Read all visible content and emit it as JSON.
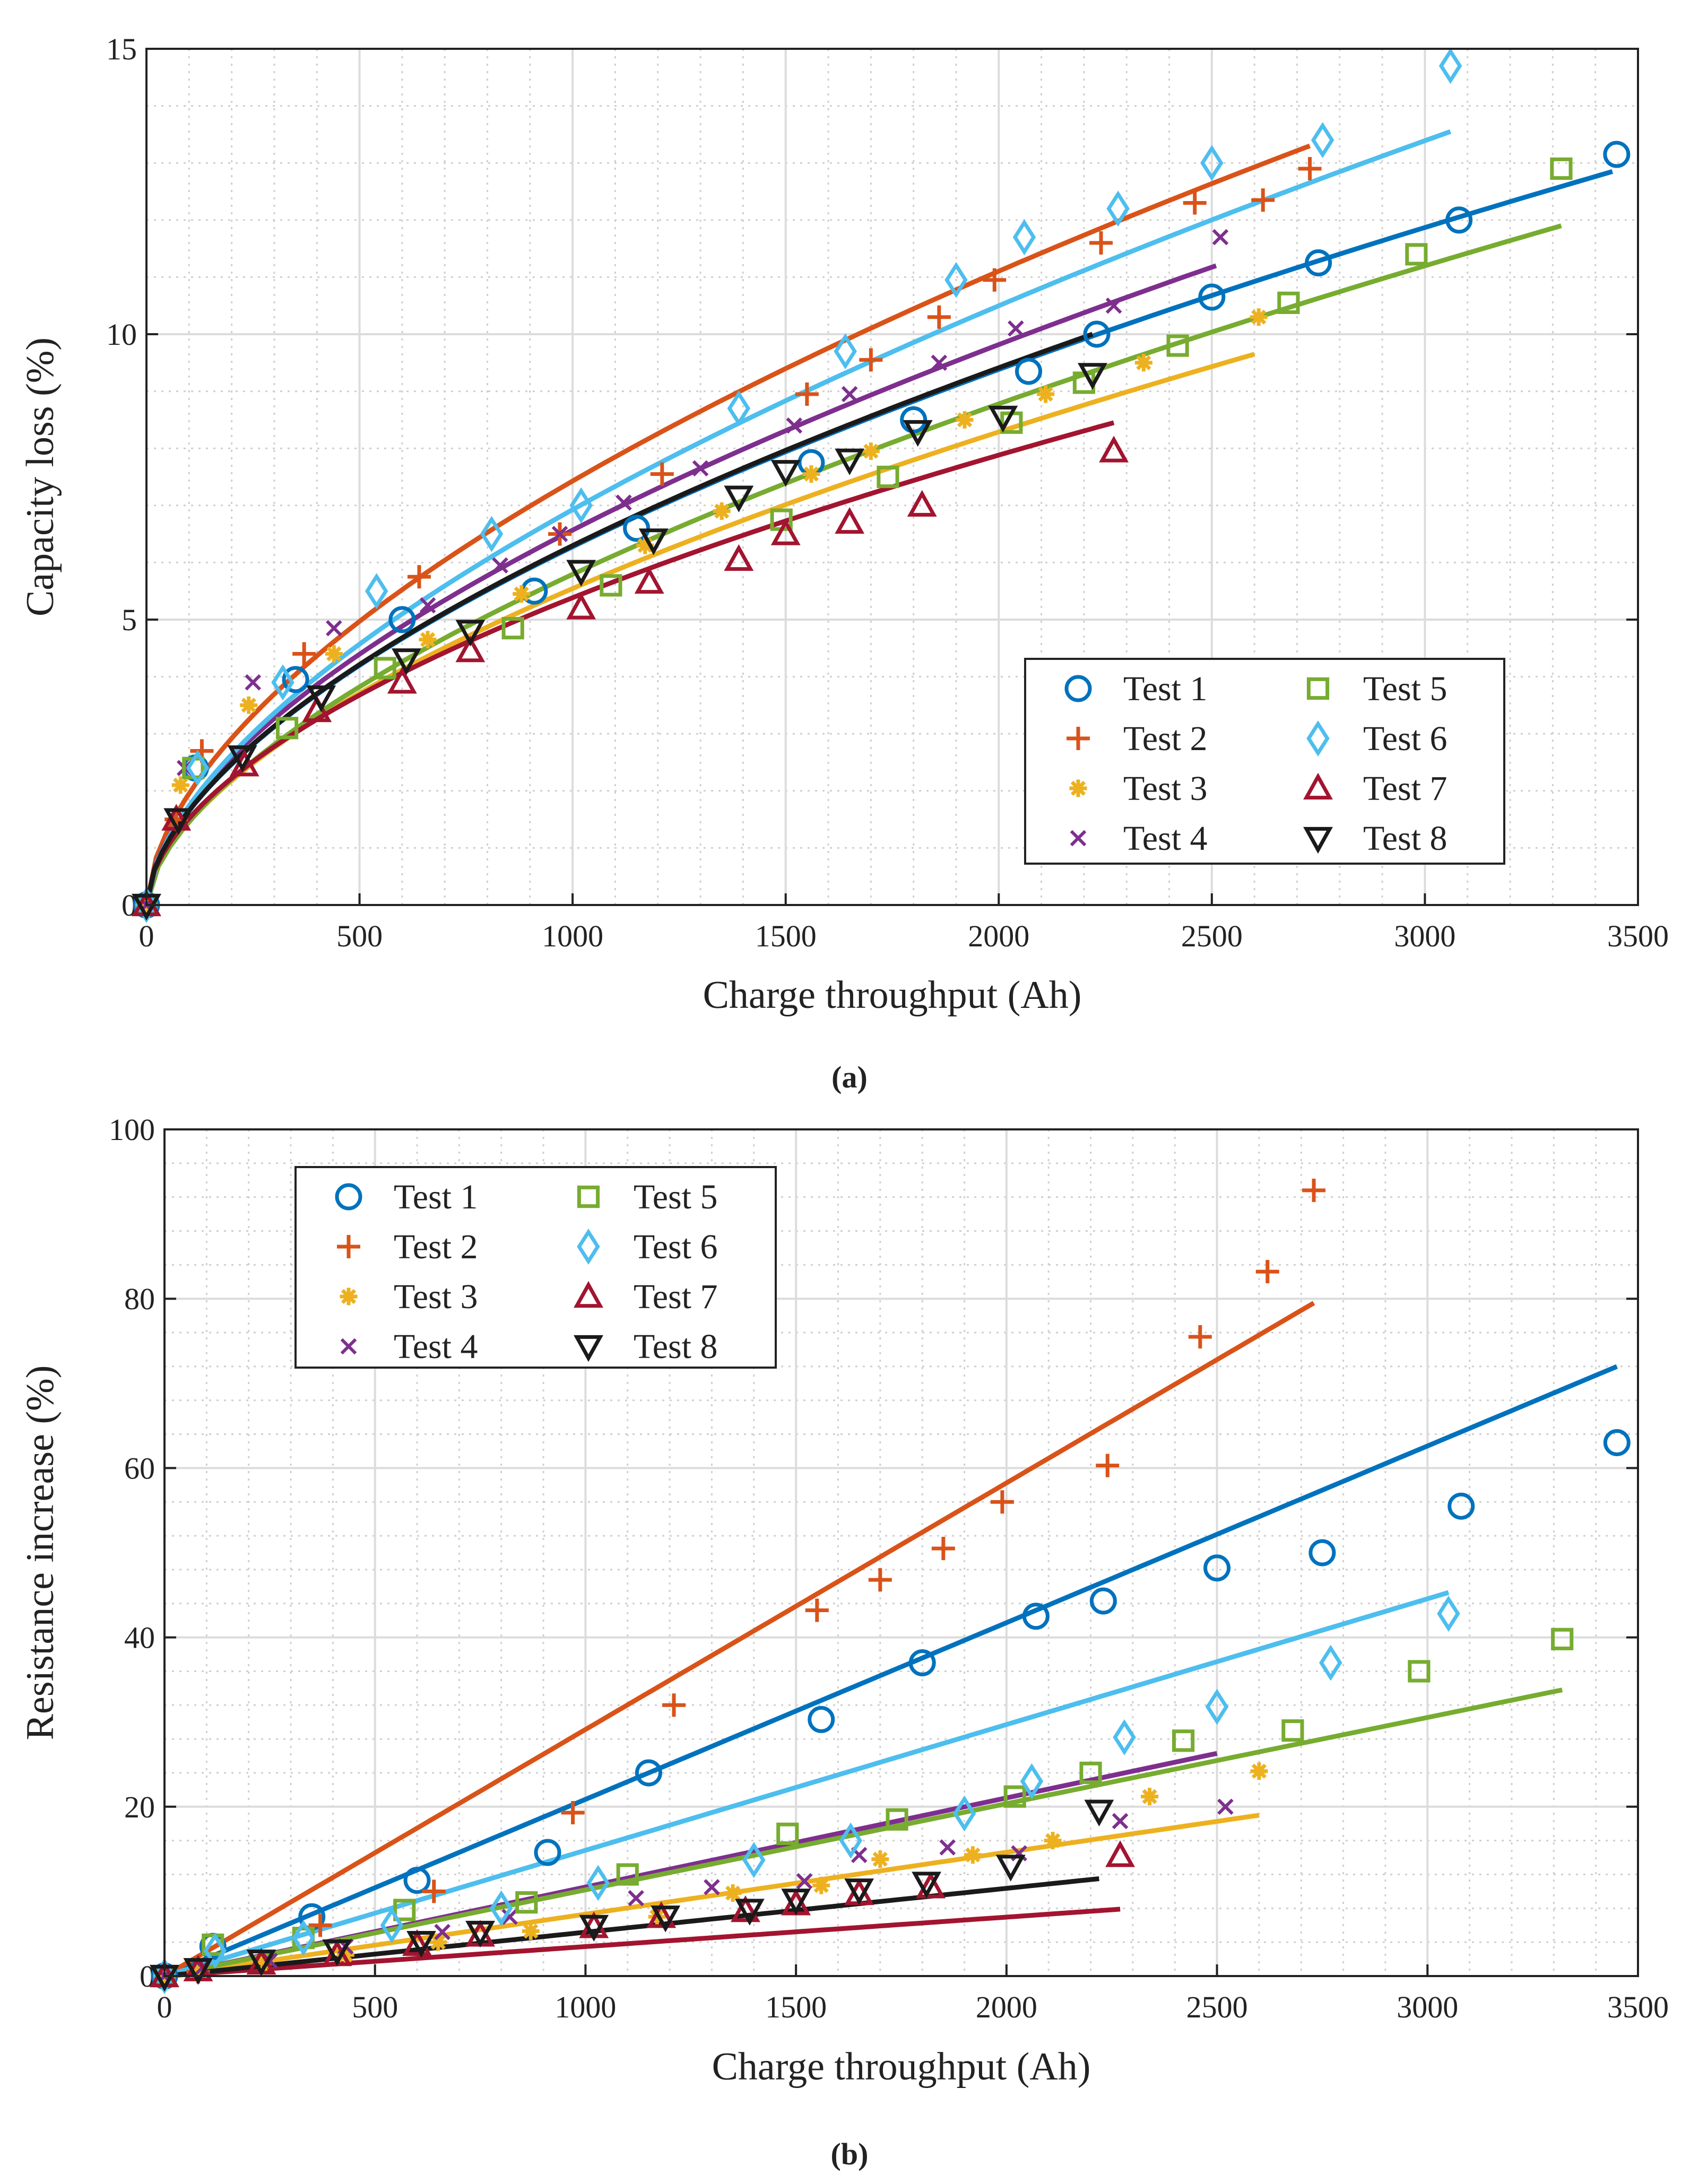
{
  "colors": {
    "Test 1": "#0072BD",
    "Test 2": "#D95319",
    "Test 3": "#EDB120",
    "Test 4": "#7E2F8E",
    "Test 5": "#77AC30",
    "Test 6": "#4DBEEE",
    "Test 7": "#A2142F",
    "Test 8": "#1a1a1a"
  },
  "chart_data": [
    {
      "id": "a",
      "type": "scatter",
      "caption": "(a)",
      "xlabel": "Charge throughput (Ah)",
      "ylabel": "Capacity loss (%)",
      "xlim": [
        0,
        3500
      ],
      "ylim": [
        0,
        15
      ],
      "xticks": [
        0,
        500,
        1000,
        1500,
        2000,
        2500,
        3000,
        3500
      ],
      "yticks": [
        0,
        5,
        10,
        15
      ],
      "x_minor_step": 100,
      "y_minor_step": 1,
      "grid": true,
      "legend_placement": "bottom-right",
      "fit_type": "power law",
      "series": [
        {
          "name": "Test 1",
          "marker": "circle",
          "points": [
            [
              0,
              0
            ],
            [
              115,
              2.4
            ],
            [
              350,
              3.95
            ],
            [
              600,
              5.0
            ],
            [
              910,
              5.5
            ],
            [
              1150,
              6.6
            ],
            [
              1560,
              7.75
            ],
            [
              1800,
              8.5
            ],
            [
              2070,
              9.35
            ],
            [
              2230,
              10.0
            ],
            [
              2500,
              10.65
            ],
            [
              2750,
              11.25
            ],
            [
              3080,
              12.0
            ],
            [
              3450,
              13.15
            ]
          ],
          "fit": {
            "b": 0.58,
            "x_end": 3440,
            "y_end": 12.85
          }
        },
        {
          "name": "Test 2",
          "marker": "plus",
          "points": [
            [
              0,
              0
            ],
            [
              70,
              1.5
            ],
            [
              130,
              2.7
            ],
            [
              370,
              4.4
            ],
            [
              640,
              5.75
            ],
            [
              970,
              6.5
            ],
            [
              1210,
              7.55
            ],
            [
              1550,
              8.95
            ],
            [
              1700,
              9.55
            ],
            [
              1860,
              10.3
            ],
            [
              1990,
              10.95
            ],
            [
              2240,
              11.6
            ],
            [
              2460,
              12.3
            ],
            [
              2620,
              12.35
            ],
            [
              2730,
              12.9
            ]
          ],
          "fit": {
            "b": 0.58,
            "x_end": 2730,
            "y_end": 13.3
          }
        },
        {
          "name": "Test 3",
          "marker": "asterisk",
          "points": [
            [
              0,
              0
            ],
            [
              80,
              2.1
            ],
            [
              240,
              3.5
            ],
            [
              440,
              4.4
            ],
            [
              660,
              4.65
            ],
            [
              880,
              5.45
            ],
            [
              1170,
              6.3
            ],
            [
              1350,
              6.9
            ],
            [
              1560,
              7.55
            ],
            [
              1700,
              7.95
            ],
            [
              1920,
              8.5
            ],
            [
              2110,
              8.95
            ],
            [
              2340,
              9.5
            ],
            [
              2610,
              10.3
            ]
          ],
          "fit": {
            "b": 0.58,
            "x_end": 2600,
            "y_end": 9.65
          }
        },
        {
          "name": "Test 4",
          "marker": "cross",
          "points": [
            [
              0,
              0
            ],
            [
              90,
              2.4
            ],
            [
              250,
              3.9
            ],
            [
              440,
              4.85
            ],
            [
              660,
              5.25
            ],
            [
              830,
              5.95
            ],
            [
              970,
              6.5
            ],
            [
              1120,
              7.05
            ],
            [
              1300,
              7.65
            ],
            [
              1520,
              8.4
            ],
            [
              1650,
              8.95
            ],
            [
              1860,
              9.5
            ],
            [
              2040,
              10.1
            ],
            [
              2270,
              10.5
            ],
            [
              2520,
              11.7
            ]
          ],
          "fit": {
            "b": 0.58,
            "x_end": 2510,
            "y_end": 11.2
          }
        },
        {
          "name": "Test 5",
          "marker": "square",
          "points": [
            [
              0,
              0
            ],
            [
              110,
              2.4
            ],
            [
              330,
              3.1
            ],
            [
              560,
              4.15
            ],
            [
              860,
              4.85
            ],
            [
              1090,
              5.6
            ],
            [
              1490,
              6.75
            ],
            [
              1740,
              7.5
            ],
            [
              2030,
              8.45
            ],
            [
              2200,
              9.15
            ],
            [
              2420,
              9.8
            ],
            [
              2680,
              10.55
            ],
            [
              2980,
              11.4
            ],
            [
              3320,
              12.9
            ]
          ],
          "fit": {
            "b": 0.6,
            "x_end": 3320,
            "y_end": 11.9
          }
        },
        {
          "name": "Test 6",
          "marker": "diamond",
          "points": [
            [
              0,
              0
            ],
            [
              120,
              2.4
            ],
            [
              320,
              3.9
            ],
            [
              540,
              5.5
            ],
            [
              810,
              6.5
            ],
            [
              1020,
              7.0
            ],
            [
              1390,
              8.7
            ],
            [
              1640,
              9.7
            ],
            [
              1900,
              10.95
            ],
            [
              2060,
              11.7
            ],
            [
              2280,
              12.2
            ],
            [
              2500,
              13.0
            ],
            [
              2760,
              13.4
            ],
            [
              3060,
              14.7
            ]
          ],
          "fit": {
            "b": 0.6,
            "x_end": 3060,
            "y_end": 13.55
          }
        },
        {
          "name": "Test 7",
          "marker": "triangle",
          "points": [
            [
              0,
              0
            ],
            [
              70,
              1.5
            ],
            [
              230,
              2.45
            ],
            [
              400,
              3.4
            ],
            [
              600,
              3.9
            ],
            [
              760,
              4.45
            ],
            [
              1020,
              5.2
            ],
            [
              1180,
              5.65
            ],
            [
              1390,
              6.05
            ],
            [
              1500,
              6.5
            ],
            [
              1650,
              6.7
            ],
            [
              1820,
              7.0
            ],
            [
              2270,
              7.95
            ]
          ],
          "fit": {
            "b": 0.55,
            "x_end": 2270,
            "y_end": 8.45
          }
        },
        {
          "name": "Test 8",
          "marker": "triangle-down",
          "points": [
            [
              0,
              0
            ],
            [
              75,
              1.5
            ],
            [
              225,
              2.6
            ],
            [
              410,
              3.65
            ],
            [
              610,
              4.3
            ],
            [
              760,
              4.8
            ],
            [
              1020,
              5.85
            ],
            [
              1190,
              6.4
            ],
            [
              1390,
              7.15
            ],
            [
              1500,
              7.6
            ],
            [
              1650,
              7.8
            ],
            [
              1810,
              8.3
            ],
            [
              2010,
              8.55
            ],
            [
              2220,
              9.3
            ]
          ],
          "fit": {
            "b": 0.58,
            "x_end": 2220,
            "y_end": 10.0
          }
        }
      ]
    },
    {
      "id": "b",
      "type": "scatter",
      "caption": "(b)",
      "xlabel": "Charge throughput (Ah)",
      "ylabel": "Resistance increase (%)",
      "xlim": [
        0,
        3500
      ],
      "ylim": [
        0,
        100
      ],
      "xticks": [
        0,
        500,
        1000,
        1500,
        2000,
        2500,
        3000,
        3500
      ],
      "yticks": [
        0,
        20,
        40,
        60,
        80,
        100
      ],
      "x_minor_step": 100,
      "y_minor_step": 4,
      "grid": true,
      "legend_placement": "top-left",
      "fit_type": "linear",
      "series": [
        {
          "name": "Test 1",
          "marker": "circle",
          "points": [
            [
              0,
              0
            ],
            [
              115,
              3.5
            ],
            [
              350,
              7
            ],
            [
              600,
              11.3
            ],
            [
              910,
              14.6
            ],
            [
              1150,
              24
            ],
            [
              1560,
              30.3
            ],
            [
              1800,
              37
            ],
            [
              2070,
              42.5
            ],
            [
              2230,
              44.3
            ],
            [
              2500,
              48.2
            ],
            [
              2750,
              50
            ],
            [
              3080,
              55.5
            ],
            [
              3450,
              63
            ]
          ],
          "fit": {
            "b": 1,
            "x_end": 3450,
            "y_end": 72
          }
        },
        {
          "name": "Test 2",
          "marker": "plus",
          "points": [
            [
              0,
              0
            ],
            [
              80,
              0.5
            ],
            [
              370,
              6
            ],
            [
              640,
              10
            ],
            [
              970,
              19.3
            ],
            [
              1210,
              32
            ],
            [
              1550,
              43.2
            ],
            [
              1700,
              46.8
            ],
            [
              1850,
              50.5
            ],
            [
              1990,
              56
            ],
            [
              2240,
              60.3
            ],
            [
              2460,
              75.5
            ],
            [
              2620,
              83.2
            ],
            [
              2730,
              92.8
            ]
          ],
          "fit": {
            "b": 1,
            "x_end": 2730,
            "y_end": 79.5
          }
        },
        {
          "name": "Test 3",
          "marker": "asterisk",
          "points": [
            [
              0,
              0
            ],
            [
              80,
              0.5
            ],
            [
              240,
              1.5
            ],
            [
              430,
              2.5
            ],
            [
              650,
              4
            ],
            [
              870,
              5.3
            ],
            [
              1170,
              7
            ],
            [
              1350,
              9.8
            ],
            [
              1560,
              10.7
            ],
            [
              1700,
              13.8
            ],
            [
              1920,
              14.3
            ],
            [
              2110,
              16
            ],
            [
              2340,
              21.2
            ],
            [
              2600,
              24.2
            ]
          ],
          "fit": {
            "b": 1,
            "x_end": 2600,
            "y_end": 19
          }
        },
        {
          "name": "Test 4",
          "marker": "cross",
          "points": [
            [
              0,
              0
            ],
            [
              90,
              1
            ],
            [
              250,
              1.8
            ],
            [
              430,
              3.5
            ],
            [
              660,
              5.2
            ],
            [
              820,
              7
            ],
            [
              1120,
              9.2
            ],
            [
              1300,
              10.5
            ],
            [
              1520,
              11.2
            ],
            [
              1650,
              14.3
            ],
            [
              1860,
              15.2
            ],
            [
              2030,
              14.5
            ],
            [
              2270,
              18.3
            ],
            [
              2520,
              20
            ]
          ],
          "fit": {
            "b": 1,
            "x_end": 2500,
            "y_end": 26.3
          }
        },
        {
          "name": "Test 5",
          "marker": "square",
          "points": [
            [
              0,
              0
            ],
            [
              115,
              3.7
            ],
            [
              330,
              4.5
            ],
            [
              570,
              7.8
            ],
            [
              860,
              8.7
            ],
            [
              1100,
              12
            ],
            [
              1480,
              16.8
            ],
            [
              1740,
              18.5
            ],
            [
              2020,
              21.2
            ],
            [
              2200,
              24
            ],
            [
              2420,
              27.8
            ],
            [
              2680,
              29
            ],
            [
              2980,
              36
            ],
            [
              3320,
              39.8
            ]
          ],
          "fit": {
            "b": 1,
            "x_end": 3320,
            "y_end": 33.8
          }
        },
        {
          "name": "Test 6",
          "marker": "diamond",
          "points": [
            [
              0,
              0
            ],
            [
              120,
              3
            ],
            [
              330,
              4.5
            ],
            [
              540,
              6
            ],
            [
              800,
              8
            ],
            [
              1030,
              11
            ],
            [
              1400,
              13.7
            ],
            [
              1630,
              16
            ],
            [
              1900,
              19.2
            ],
            [
              2060,
              23
            ],
            [
              2280,
              28.2
            ],
            [
              2500,
              31.8
            ],
            [
              2770,
              37
            ],
            [
              3050,
              42.8
            ]
          ],
          "fit": {
            "b": 1,
            "x_end": 3050,
            "y_end": 45.3
          }
        },
        {
          "name": "Test 7",
          "marker": "triangle",
          "points": [
            [
              0,
              0
            ],
            [
              80,
              0.7
            ],
            [
              230,
              1.5
            ],
            [
              410,
              2.5
            ],
            [
              600,
              3.7
            ],
            [
              750,
              4.8
            ],
            [
              1020,
              5.8
            ],
            [
              1180,
              7
            ],
            [
              1380,
              7.7
            ],
            [
              1500,
              8.5
            ],
            [
              1650,
              9.7
            ],
            [
              1820,
              10.5
            ],
            [
              2270,
              14.2
            ]
          ],
          "fit": {
            "b": 1,
            "x_end": 2270,
            "y_end": 7.9
          }
        },
        {
          "name": "Test 8",
          "marker": "triangle-down",
          "points": [
            [
              0,
              0
            ],
            [
              80,
              0.8
            ],
            [
              230,
              1.8
            ],
            [
              410,
              3
            ],
            [
              610,
              4
            ],
            [
              750,
              5.2
            ],
            [
              1020,
              5.9
            ],
            [
              1190,
              7
            ],
            [
              1390,
              7.8
            ],
            [
              1500,
              9
            ],
            [
              1650,
              10.2
            ],
            [
              1810,
              11
            ],
            [
              2010,
              13
            ],
            [
              2220,
              19.5
            ]
          ],
          "fit": {
            "b": 1,
            "x_end": 2220,
            "y_end": 11.5
          }
        }
      ]
    }
  ]
}
